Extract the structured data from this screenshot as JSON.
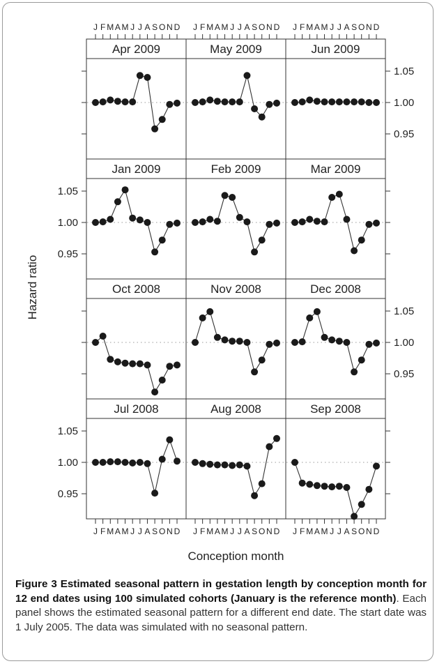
{
  "chart_data": {
    "type": "line",
    "x_label": "Conception month",
    "y_label": "Hazard ratio",
    "month_labels": [
      "J",
      "F",
      "M",
      "A",
      "M",
      "J",
      "J",
      "A",
      "S",
      "O",
      "N",
      "D"
    ],
    "y_ticks": [
      "0.95",
      "1.00",
      "1.05"
    ],
    "ylim": [
      0.91,
      1.07
    ],
    "reference_line": 1.0,
    "panels": [
      {
        "title": "Apr 2009",
        "values": [
          1.0,
          1.001,
          1.004,
          1.002,
          1.001,
          1.001,
          1.043,
          1.04,
          0.958,
          0.973,
          0.997,
          0.999
        ]
      },
      {
        "title": "May 2009",
        "values": [
          1.0,
          1.001,
          1.004,
          1.002,
          1.001,
          1.001,
          1.001,
          1.043,
          0.99,
          0.977,
          0.997,
          0.999
        ]
      },
      {
        "title": "Jun 2009",
        "values": [
          1.0,
          1.001,
          1.004,
          1.002,
          1.001,
          1.001,
          1.001,
          1.001,
          1.001,
          1.001,
          1.0,
          1.0
        ]
      },
      {
        "title": "Jan 2009",
        "values": [
          1.0,
          1.001,
          1.005,
          1.033,
          1.052,
          1.007,
          1.004,
          1.0,
          0.953,
          0.972,
          0.997,
          0.999
        ]
      },
      {
        "title": "Feb 2009",
        "values": [
          1.0,
          1.001,
          1.005,
          1.002,
          1.043,
          1.04,
          1.008,
          1.001,
          0.953,
          0.972,
          0.997,
          0.999
        ]
      },
      {
        "title": "Mar 2009",
        "values": [
          1.0,
          1.001,
          1.005,
          1.002,
          1.001,
          1.04,
          1.045,
          1.005,
          0.955,
          0.972,
          0.997,
          0.999
        ]
      },
      {
        "title": "Oct 2008",
        "values": [
          1.0,
          1.01,
          0.973,
          0.969,
          0.967,
          0.966,
          0.966,
          0.964,
          0.921,
          0.94,
          0.962,
          0.964
        ]
      },
      {
        "title": "Nov 2008",
        "values": [
          1.0,
          1.039,
          1.049,
          1.008,
          1.004,
          1.002,
          1.002,
          1.0,
          0.953,
          0.972,
          0.997,
          0.999
        ]
      },
      {
        "title": "Dec 2008",
        "values": [
          1.0,
          1.001,
          1.039,
          1.049,
          1.008,
          1.004,
          1.002,
          1.0,
          0.953,
          0.972,
          0.997,
          0.999
        ]
      },
      {
        "title": "Jul 2008",
        "values": [
          1.0,
          1.0,
          1.001,
          1.001,
          1.0,
          0.999,
          1.0,
          0.998,
          0.951,
          1.005,
          1.036,
          1.002
        ]
      },
      {
        "title": "Aug 2008",
        "values": [
          1.0,
          0.998,
          0.997,
          0.996,
          0.996,
          0.995,
          0.996,
          0.994,
          0.947,
          0.966,
          1.025,
          1.038
        ]
      },
      {
        "title": "Sep 2008",
        "values": [
          1.0,
          0.967,
          0.965,
          0.963,
          0.962,
          0.961,
          0.962,
          0.96,
          0.914,
          0.933,
          0.957,
          0.994
        ]
      }
    ]
  },
  "caption": {
    "bold": "Figure 3 Estimated seasonal pattern in gestation length by conception month for 12 end dates using 100 simulated cohorts (January is the reference month)",
    "text": ". Each panel shows the estimated seasonal pattern for a different end date. The start date was 1 July 2005. The data was simulated with no seasonal pattern."
  }
}
